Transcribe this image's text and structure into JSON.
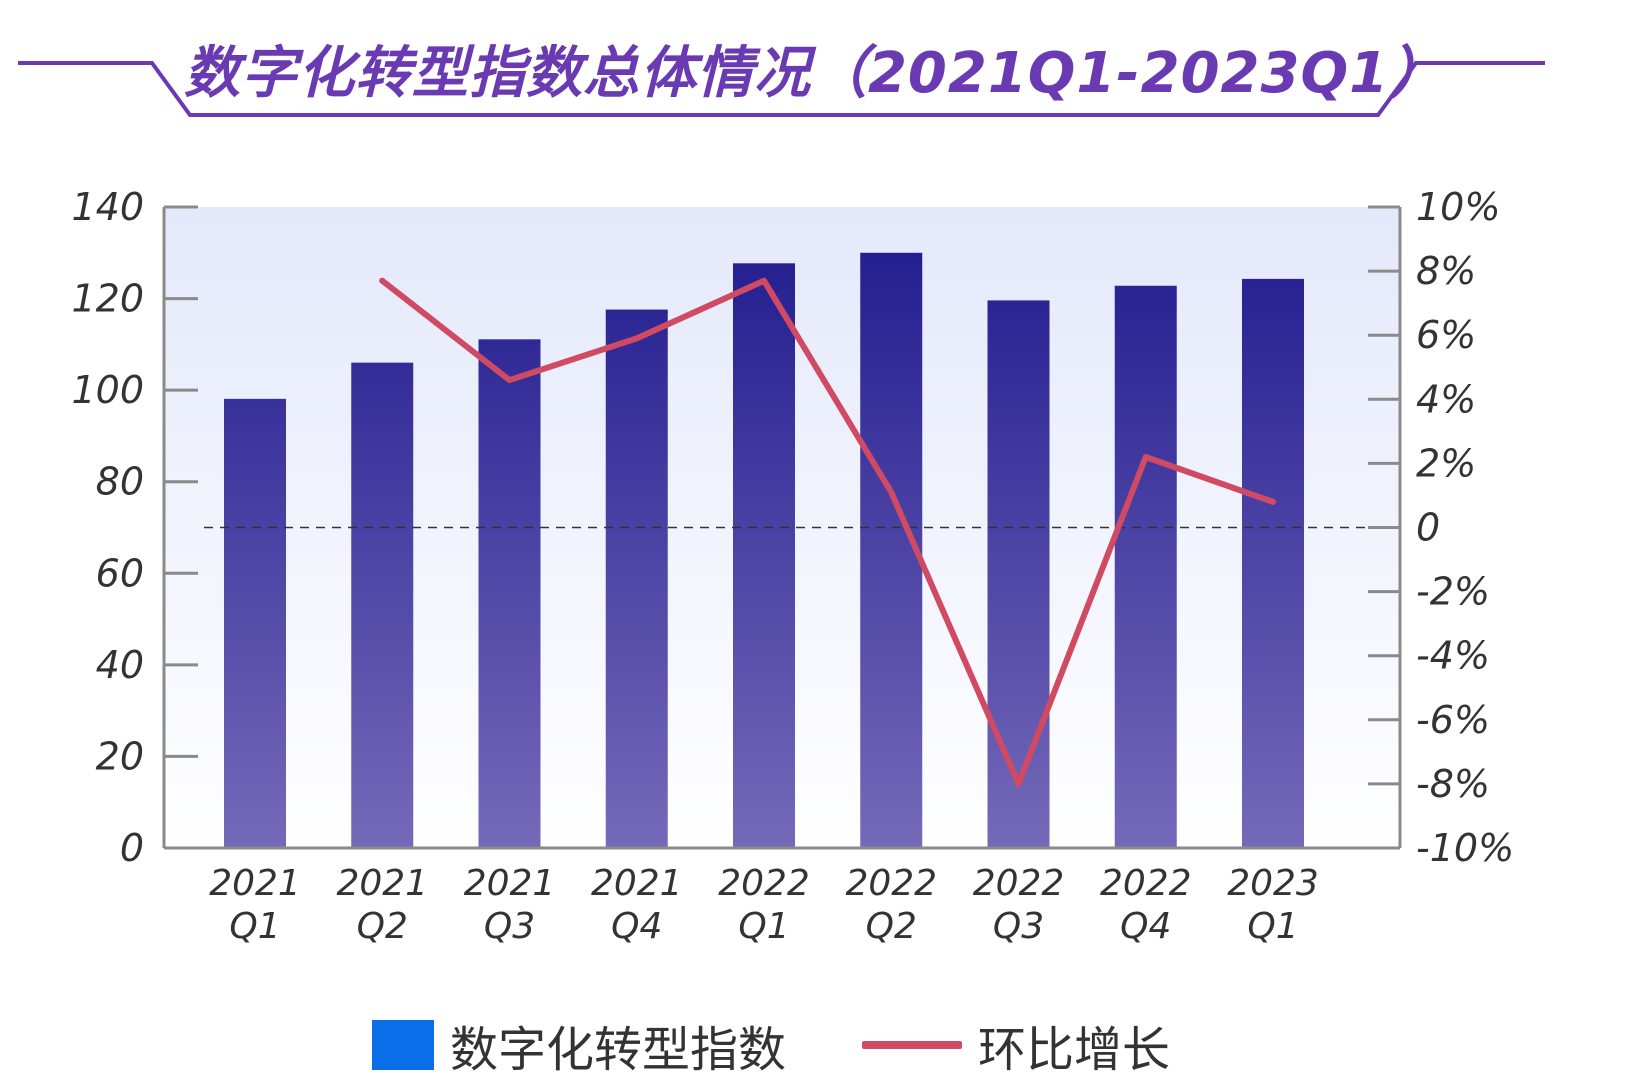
{
  "title": "数字化转型指数总体情况（2021Q1-2023Q1）",
  "colors": {
    "title": "#6a3ab2",
    "frame": "#6a3ab2",
    "bar_top": "#1f1a8e",
    "bar_bottom": "#7569b9",
    "line": "#d04a63",
    "legend_bar": "#0a6ee8"
  },
  "legend": {
    "bar_label": "数字化转型指数",
    "line_label": "环比增长"
  },
  "chart_data": {
    "type": "bar",
    "categories": [
      [
        "2021",
        "Q1"
      ],
      [
        "2021",
        "Q2"
      ],
      [
        "2021",
        "Q3"
      ],
      [
        "2021",
        "Q4"
      ],
      [
        "2022",
        "Q1"
      ],
      [
        "2022",
        "Q2"
      ],
      [
        "2022",
        "Q3"
      ],
      [
        "2022",
        "Q4"
      ],
      [
        "2023",
        "Q1"
      ]
    ],
    "series": [
      {
        "name": "数字化转型指数",
        "type": "bar",
        "axis": "left",
        "values": [
          98.1,
          106.0,
          111.1,
          117.6,
          127.7,
          130.0,
          119.6,
          122.8,
          124.3
        ]
      },
      {
        "name": "环比增长",
        "type": "line",
        "axis": "right",
        "values": [
          null,
          7.7,
          4.6,
          5.9,
          7.7,
          1.1,
          -8.0,
          2.2,
          0.8
        ]
      }
    ],
    "left_axis": {
      "min": 0,
      "max": 140,
      "ticks": [
        0,
        20,
        40,
        60,
        80,
        100,
        120,
        140
      ]
    },
    "right_axis": {
      "min": -10,
      "max": 10,
      "ticks": [
        -10,
        -8,
        -6,
        -4,
        -2,
        0,
        2,
        4,
        6,
        8,
        10
      ],
      "tick_labels": [
        "-10%",
        "-8%",
        "-6%",
        "-4%",
        "-2%",
        "0",
        "2%",
        "4%",
        "6%",
        "8%",
        "10%"
      ]
    },
    "zero_line": "dashed",
    "legend_position": "bottom"
  }
}
